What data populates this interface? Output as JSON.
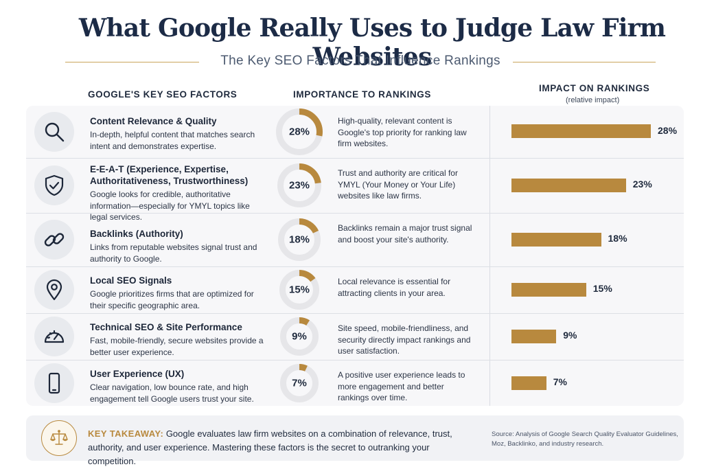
{
  "header": {
    "title": "What Google Really Uses to Judge Law Firm Websites",
    "subtitle": "The Key SEO Factors That Influence Rankings"
  },
  "columns": {
    "factors": "GOOGLE'S KEY SEO FACTORS",
    "importance": "IMPORTANCE TO RANKINGS",
    "impact": "IMPACT ON RANKINGS",
    "impact_sub": "(relative impact)"
  },
  "factors": [
    {
      "icon": "magnifier-icon",
      "title": "Content Relevance & Quality",
      "desc": "In-depth, helpful content that matches search intent and demonstrates expertise.",
      "pct_label": "28%",
      "importance": "High-quality, relevant content is Google's top priority for ranking law firm websites."
    },
    {
      "icon": "shield-check-icon",
      "title": "E-E-A-T (Experience, Expertise, Authoritativeness, Trustworthiness)",
      "desc": "Google looks for credible, authoritative information—especially for YMYL topics like legal services.",
      "pct_label": "23%",
      "importance": "Trust and authority are critical for YMYL (Your Money or Your Life) websites like law firms."
    },
    {
      "icon": "link-icon",
      "title": "Backlinks (Authority)",
      "desc": "Links from reputable websites signal trust and authority to Google.",
      "pct_label": "18%",
      "importance": "Backlinks remain a major trust signal and boost your site's authority."
    },
    {
      "icon": "location-pin-icon",
      "title": "Local SEO Signals",
      "desc": "Google prioritizes firms that are optimized for their specific geographic area.",
      "pct_label": "15%",
      "importance": "Local relevance is essential for attracting clients in your area."
    },
    {
      "icon": "speedometer-icon",
      "title": "Technical SEO & Site Performance",
      "desc": "Fast, mobile-friendly, secure websites provide a better user experience.",
      "pct_label": "9%",
      "importance": "Site speed, mobile-friendliness, and security directly impact rankings and user satisfaction."
    },
    {
      "icon": "smartphone-icon",
      "title": "User Experience (UX)",
      "desc": "Clear navigation, low bounce rate, and high engagement tell Google users trust your site.",
      "pct_label": "7%",
      "importance": "A positive user experience leads to more engagement and better rankings over time."
    }
  ],
  "chart_data": {
    "type": "bar",
    "categories": [
      "Content Relevance & Quality",
      "E-E-A-T (Experience, Expertise, Authoritativeness, Trustworthiness)",
      "Backlinks (Authority)",
      "Local SEO Signals",
      "Technical SEO & Site Performance",
      "User Experience (UX)"
    ],
    "values": [
      28,
      23,
      18,
      15,
      9,
      7
    ],
    "unit": "%",
    "title": "IMPACT ON RANKINGS",
    "subtitle": "(relative impact)",
    "orientation": "horizontal",
    "xlim": [
      0,
      28
    ],
    "bar_color": "#b8893e",
    "donut_track_color": "#e6e6e9"
  },
  "takeaway": {
    "label": "KEY TAKEAWAY:",
    "text": "Google evaluates law firm websites on a combination of relevance, trust, authority, and user experience. Mastering these factors is the secret to outranking your competition.",
    "icon": "scales-icon"
  },
  "source": "Source: Analysis of Google Search Quality Evaluator Guidelines, Moz, Backlinko, and industry research.",
  "colors": {
    "accent": "#b8893e",
    "title": "#1c2b46",
    "panel": "#f7f7f9"
  }
}
